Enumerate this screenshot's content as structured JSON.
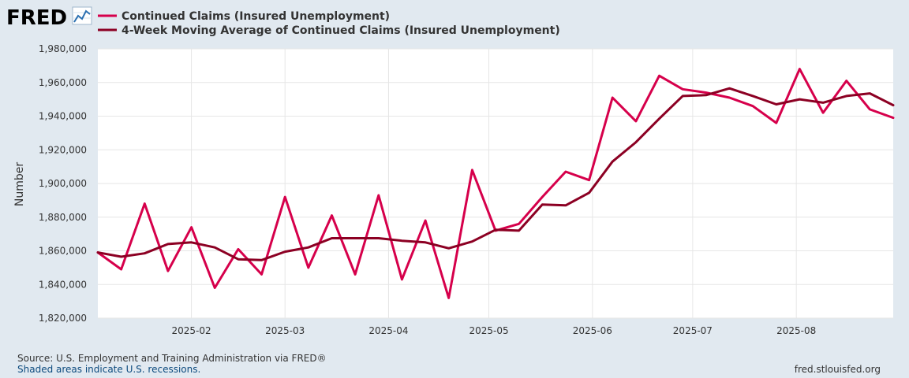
{
  "logo": {
    "text": "FRED",
    "icon": "fred-chart-icon"
  },
  "footer": {
    "source": "Source: U.S. Employment and Training Administration via FRED®",
    "note": "Shaded areas indicate U.S. recessions.",
    "url": "fred.stlouisfed.org"
  },
  "colors": {
    "background": "#e1e9f0",
    "plot_background": "#ffffff",
    "grid": "#e6e6e6",
    "series1": "#d6004b",
    "series2": "#8c0023",
    "source_text": "#333333",
    "note_text": "#0c4a7e",
    "url_text": "#333333"
  },
  "chart_data": {
    "type": "line",
    "ylabel": "Number",
    "ylim": [
      1820000,
      1980000
    ],
    "y_ticks": [
      1820000,
      1840000,
      1860000,
      1880000,
      1900000,
      1920000,
      1940000,
      1960000,
      1980000
    ],
    "y_tick_labels": [
      "1,820,000",
      "1,840,000",
      "1,860,000",
      "1,880,000",
      "1,900,000",
      "1,920,000",
      "1,940,000",
      "1,960,000",
      "1,980,000"
    ],
    "xlim": [
      "2025-01-04",
      "2025-08-30"
    ],
    "x_ticks": [
      "2025-02-01",
      "2025-03-01",
      "2025-04-01",
      "2025-05-01",
      "2025-06-01",
      "2025-07-01",
      "2025-08-01"
    ],
    "x_tick_labels": [
      "2025-02",
      "2025-03",
      "2025-04",
      "2025-05",
      "2025-06",
      "2025-07",
      "2025-08"
    ],
    "grid": true,
    "legend_position": "top",
    "x": [
      "2025-01-04",
      "2025-01-11",
      "2025-01-18",
      "2025-01-25",
      "2025-02-01",
      "2025-02-08",
      "2025-02-15",
      "2025-02-22",
      "2025-03-01",
      "2025-03-08",
      "2025-03-15",
      "2025-03-22",
      "2025-03-29",
      "2025-04-05",
      "2025-04-12",
      "2025-04-19",
      "2025-04-26",
      "2025-05-03",
      "2025-05-10",
      "2025-05-17",
      "2025-05-24",
      "2025-05-31",
      "2025-06-07",
      "2025-06-14",
      "2025-06-21",
      "2025-06-28",
      "2025-07-05",
      "2025-07-12",
      "2025-07-19",
      "2025-07-26",
      "2025-08-02",
      "2025-08-09",
      "2025-08-16",
      "2025-08-23",
      "2025-08-30"
    ],
    "series": [
      {
        "name": "Continued Claims (Insured Unemployment)",
        "color": "#d6004b",
        "values": [
          1859000,
          1849000,
          1888000,
          1848000,
          1874000,
          1838000,
          1861000,
          1846000,
          1892000,
          1850000,
          1881000,
          1846000,
          1893000,
          1843000,
          1878000,
          1832000,
          1908000,
          1872000,
          1876000,
          1892000,
          1907000,
          1902000,
          1951000,
          1937000,
          1964000,
          1956000,
          1954000,
          1951000,
          1946000,
          1936000,
          1968000,
          1942000,
          1961000,
          1944000,
          1939000
        ]
      },
      {
        "name": "4-Week Moving Average of Continued Claims (Insured Unemployment)",
        "color": "#8c0023",
        "values": [
          1859000,
          1856500,
          1858500,
          1864000,
          1865000,
          1862000,
          1855000,
          1854500,
          1859500,
          1862000,
          1867500,
          1867500,
          1867500,
          1866000,
          1865000,
          1861500,
          1865500,
          1872500,
          1872000,
          1887500,
          1887000,
          1894500,
          1913000,
          1924500,
          1938500,
          1952000,
          1952500,
          1956500,
          1952000,
          1947000,
          1950000,
          1948000,
          1952000,
          1953500,
          1946500
        ]
      }
    ]
  }
}
